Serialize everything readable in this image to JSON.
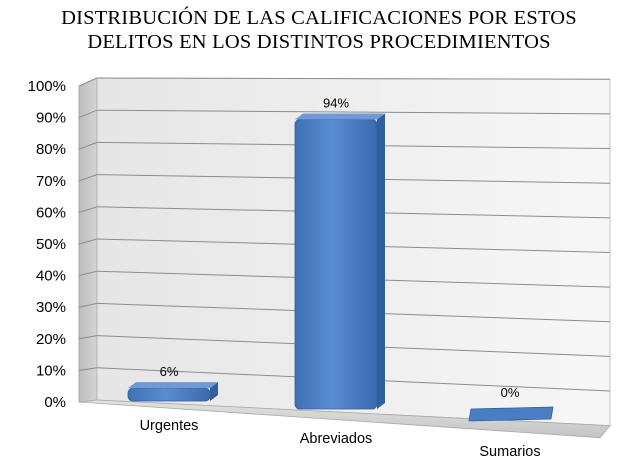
{
  "chart_data": {
    "type": "bar",
    "title_lines": [
      "DISTRIBUCIÓN DE LAS CALIFICACIONES POR ESTOS",
      "DELITOS EN  LOS DISTINTOS PROCEDIMIENTOS"
    ],
    "categories": [
      "Urgentes",
      "Abreviados",
      "Sumarios"
    ],
    "values": [
      6,
      94,
      0
    ],
    "data_labels": [
      "6%",
      "94%",
      "0%"
    ],
    "y_ticks": [
      "0%",
      "10%",
      "20%",
      "30%",
      "40%",
      "50%",
      "60%",
      "70%",
      "80%",
      "90%",
      "100%"
    ],
    "ylim": [
      0,
      100
    ],
    "grid": true,
    "legend": "none",
    "style": "3d-column",
    "colors": {
      "bar_front": "#4a7ec4",
      "bar_top": "#6f9ad6",
      "bar_side": "#2f5f9f",
      "wall": "#f2f2f2",
      "side_wall": "#c8c8c8",
      "floor": "#d2d2d2",
      "gridline": "#8c8c8c"
    }
  }
}
